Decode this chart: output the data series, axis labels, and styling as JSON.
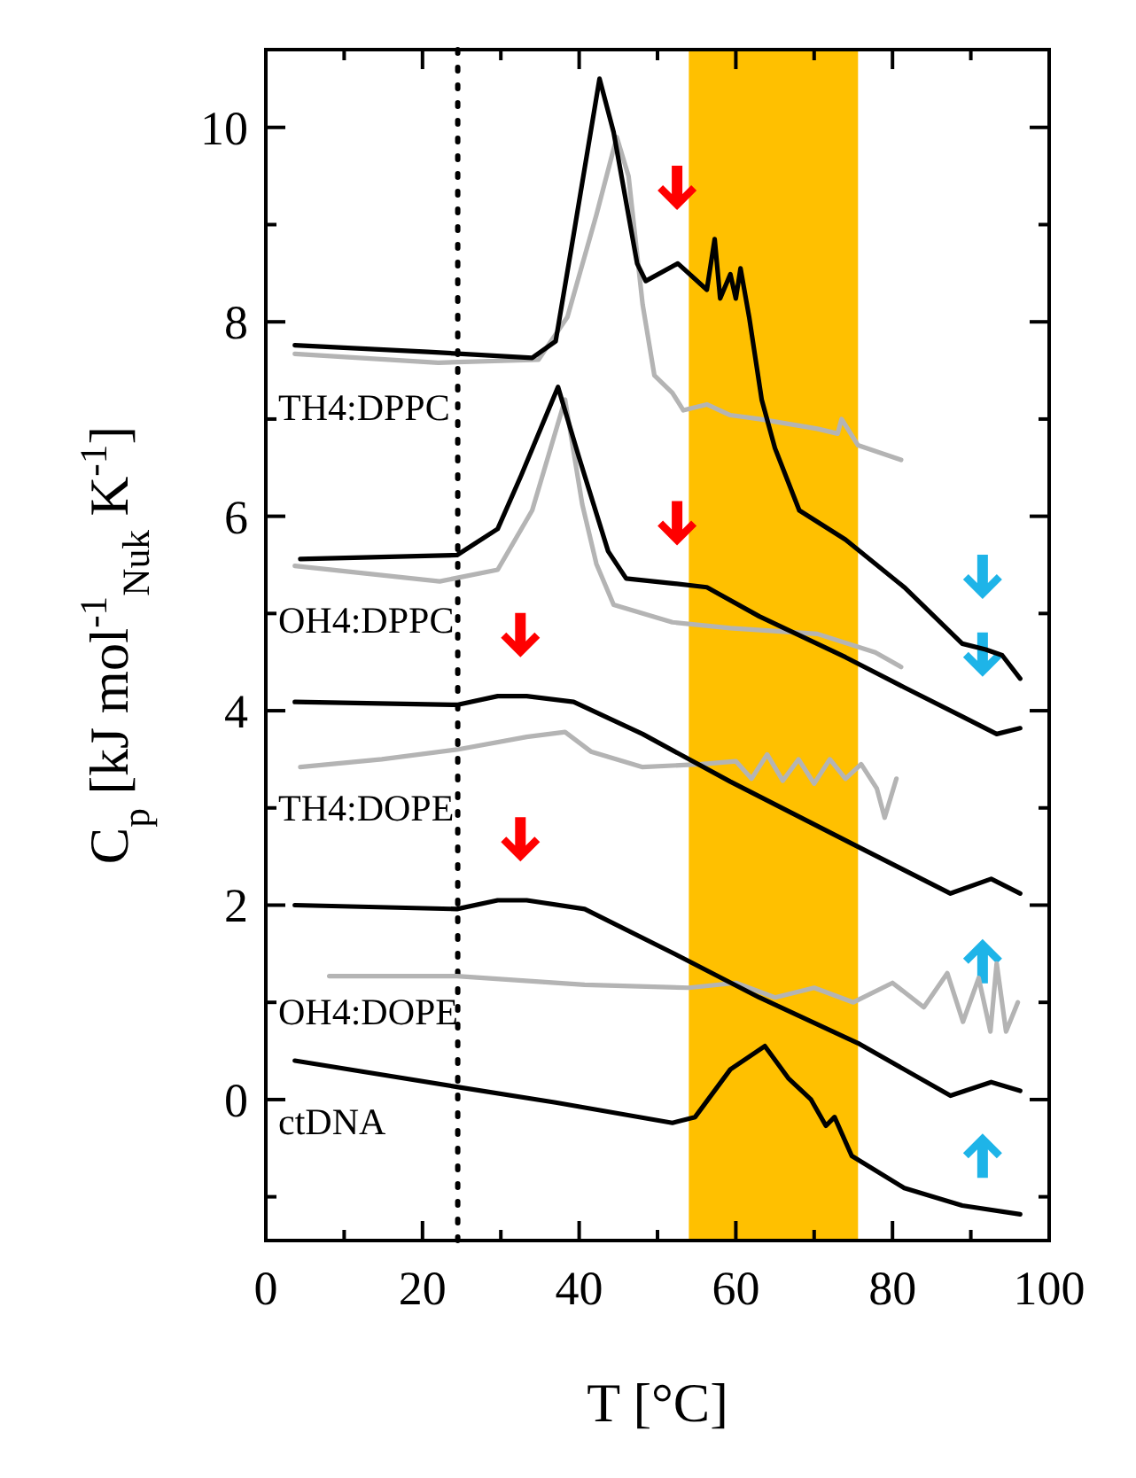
{
  "chart_data": {
    "type": "line",
    "xlabel": "T [°C]",
    "ylabel": "C$_{p}$ [kJ mol$^{-1}$$_{Nuk}$ K$^{-1}$]",
    "xlim": [
      0,
      100
    ],
    "ylim": [
      -1.45,
      10.8
    ],
    "xticks": [
      0,
      {
        "value": 10,
        "label": null
      },
      20,
      {
        "value": 30,
        "label": null
      },
      40,
      {
        "value": 50,
        "label": null
      },
      60,
      {
        "value": 70,
        "label": null
      },
      80,
      {
        "value": 90,
        "label": null
      },
      100
    ],
    "yticks": [
      {
        "value": -1,
        "label": null
      },
      0,
      {
        "value": 1,
        "label": null
      },
      2,
      {
        "value": 3,
        "label": null
      },
      4,
      {
        "value": 5,
        "label": null
      },
      6,
      {
        "value": 7,
        "label": null
      },
      8,
      {
        "value": 9,
        "label": null
      },
      10
    ],
    "bands": [
      {
        "axis": "x",
        "from": 54,
        "to": 75.6,
        "color": "#ffc000"
      }
    ],
    "ref_lines": [
      {
        "axis": "x",
        "value": 24.5,
        "color": "#000000",
        "line_style": "dotted"
      }
    ],
    "series": [
      {
        "type": "line",
        "color": "#b4b4b4",
        "x": [
          3.7,
          22,
          34.8,
          38.5,
          42.2,
          44.8,
          46.3,
          48.1,
          49.6,
          51.9,
          53.3,
          56.3,
          59.3,
          63,
          70.4,
          73,
          73.5,
          75.6,
          81.1
        ],
        "values": [
          7.67,
          7.58,
          7.61,
          8.05,
          9.1,
          9.9,
          9.5,
          8.18,
          7.45,
          7.27,
          7.09,
          7.15,
          7.04,
          7,
          6.9,
          6.85,
          7,
          6.73,
          6.58
        ]
      },
      {
        "type": "line",
        "color": "#b4b4b4",
        "x": [
          3.7,
          22.2,
          29.6,
          34,
          38.2,
          40.4,
          42.2,
          44.4,
          51.9,
          59.3,
          70.4,
          77.8,
          81.1
        ],
        "values": [
          5.49,
          5.33,
          5.45,
          6.06,
          7.2,
          6.12,
          5.51,
          5.09,
          4.91,
          4.85,
          4.79,
          4.6,
          4.45
        ]
      },
      {
        "type": "line",
        "color": "#b4b4b4",
        "x": [
          4.4,
          14.8,
          24.4,
          33.3,
          38.2,
          41.5,
          48.1,
          55.6,
          60,
          62,
          64,
          66,
          68,
          70,
          72,
          74,
          76,
          78,
          79,
          80.5
        ],
        "values": [
          3.42,
          3.5,
          3.6,
          3.73,
          3.78,
          3.58,
          3.42,
          3.45,
          3.48,
          3.3,
          3.55,
          3.28,
          3.5,
          3.25,
          3.5,
          3.3,
          3.45,
          3.2,
          2.9,
          3.3
        ]
      },
      {
        "type": "line",
        "color": "#b4b4b4",
        "x": [
          8.1,
          24.4,
          40.7,
          54,
          60,
          65,
          70,
          75,
          80,
          84,
          87,
          89,
          91,
          92.5,
          93.3,
          94.5,
          96
        ],
        "values": [
          1.27,
          1.27,
          1.18,
          1.15,
          1.2,
          1.05,
          1.15,
          1,
          1.2,
          0.95,
          1.3,
          0.8,
          1.25,
          0.7,
          1.4,
          0.7,
          1
        ]
      },
      {
        "type": "line",
        "color": "#000000",
        "x": [
          3.7,
          20.7,
          34,
          37,
          39.3,
          42.6,
          44.4,
          47.4,
          48.5,
          52.6,
          56.3,
          57.3,
          58,
          59.3,
          60,
          60.6,
          61.7,
          63.3,
          65,
          68.1,
          74,
          81.5,
          88.9,
          91.9,
          94,
          96.3
        ],
        "values": [
          7.76,
          7.69,
          7.63,
          7.8,
          8.9,
          10.5,
          9.95,
          8.6,
          8.42,
          8.6,
          8.33,
          8.85,
          8.24,
          8.49,
          8.24,
          8.55,
          8.05,
          7.2,
          6.7,
          6.06,
          5.76,
          5.27,
          4.69,
          4.63,
          4.57,
          4.33
        ]
      },
      {
        "type": "line",
        "color": "#000000",
        "x": [
          4.4,
          24.4,
          29.6,
          32.6,
          37.3,
          40,
          43.7,
          46,
          51.9,
          56.3,
          63,
          74,
          81.5,
          88.9,
          93.3,
          96.3
        ],
        "values": [
          5.56,
          5.6,
          5.87,
          6.42,
          7.33,
          6.6,
          5.64,
          5.36,
          5.31,
          5.27,
          4.97,
          4.55,
          4.24,
          3.94,
          3.76,
          3.82
        ]
      },
      {
        "type": "line",
        "color": "#000000",
        "x": [
          3.7,
          24.4,
          29.6,
          33.3,
          39.3,
          48.1,
          59.3,
          75.6,
          87.4,
          92.6,
          96.3
        ],
        "values": [
          4.09,
          4.06,
          4.15,
          4.15,
          4.09,
          3.76,
          3.27,
          2.6,
          2.12,
          2.27,
          2.12
        ]
      },
      {
        "type": "line",
        "color": "#000000",
        "x": [
          3.7,
          24.4,
          29.6,
          33.3,
          40.7,
          51.9,
          63,
          75.6,
          87.4,
          92.6,
          96.3
        ],
        "values": [
          2,
          1.96,
          2.05,
          2.05,
          1.96,
          1.51,
          1.05,
          0.58,
          0.04,
          0.18,
          0.09
        ]
      },
      {
        "type": "line",
        "color": "#000000",
        "x": [
          3.7,
          24.4,
          37,
          51.9,
          54.8,
          59.3,
          63.7,
          66.7,
          69.6,
          71.5,
          72.6,
          74.8,
          81.5,
          88.9,
          96.3
        ],
        "values": [
          0.4,
          0.13,
          -0.03,
          -0.24,
          -0.18,
          0.31,
          0.55,
          0.22,
          0,
          -0.27,
          -0.18,
          -0.58,
          -0.91,
          -1.09,
          -1.18
        ]
      }
    ],
    "annotations": [
      "TH4:DPPC",
      "OH4:DPPC",
      "TH4:DOPE",
      "OH4:DOPE",
      "ctDNA"
    ]
  }
}
